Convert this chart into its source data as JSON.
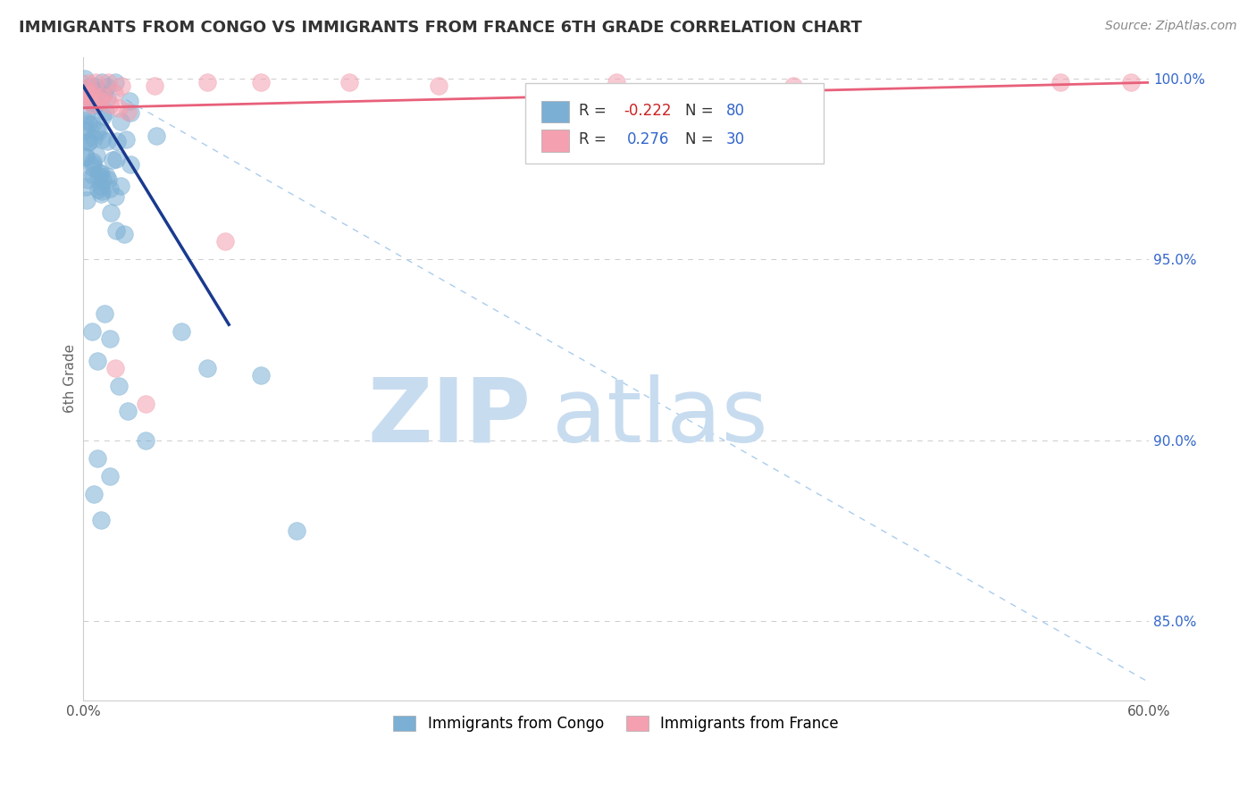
{
  "title": "IMMIGRANTS FROM CONGO VS IMMIGRANTS FROM FRANCE 6TH GRADE CORRELATION CHART",
  "source": "Source: ZipAtlas.com",
  "ylabel": "6th Grade",
  "x_min": 0.0,
  "x_max": 0.6,
  "y_min": 0.828,
  "y_max": 1.006,
  "x_ticks": [
    0.0,
    0.1,
    0.2,
    0.3,
    0.4,
    0.5,
    0.6
  ],
  "x_tick_labels": [
    "0.0%",
    "",
    "",
    "",
    "",
    "",
    "60.0%"
  ],
  "y_ticks": [
    0.85,
    0.9,
    0.95,
    1.0
  ],
  "y_tick_labels": [
    "85.0%",
    "90.0%",
    "95.0%",
    "100.0%"
  ],
  "legend_r_congo": "-0.222",
  "legend_n_congo": "80",
  "legend_r_france": "0.276",
  "legend_n_france": "30",
  "legend_label_congo": "Immigrants from Congo",
  "legend_label_france": "Immigrants from France",
  "color_congo": "#7BAFD4",
  "color_france": "#F4A0B0",
  "trendline_color_congo": "#1A3A8F",
  "trendline_color_france": "#E8607A",
  "diagonal_color": "#AACCEE",
  "watermark_zip": "ZIP",
  "watermark_atlas": "atlas",
  "watermark_color": "#C8DCF0",
  "background_color": "#FFFFFF",
  "title_fontsize": 13,
  "source_fontsize": 10,
  "congo_seed": 12345,
  "france_seed": 67890
}
